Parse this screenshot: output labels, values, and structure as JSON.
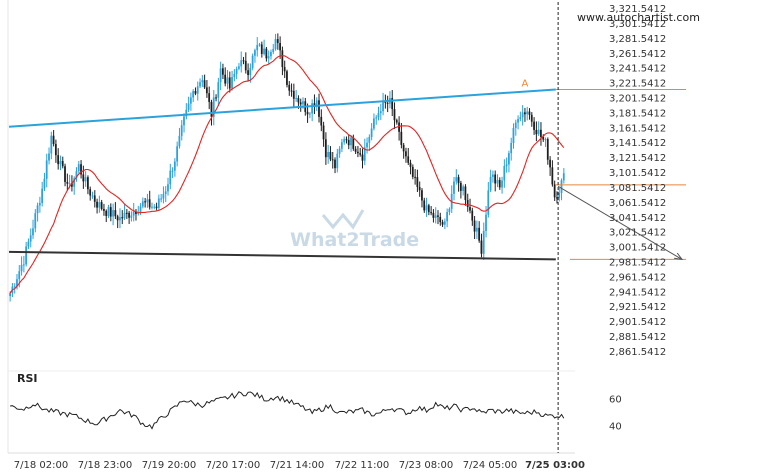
{
  "site_label": "www.autochartist.com",
  "watermark": "What2Trade",
  "colors": {
    "bull": "#2aa2dd",
    "bear": "#1e1e1e",
    "ma": "#e52421",
    "trend_upper": "#2aa2dd",
    "trend_lower": "#333333",
    "levels": "#e6883a",
    "rsi": "#222222"
  },
  "chart_data": {
    "type": "candlestick",
    "y_ticks": [
      "3,321.5412",
      "3,301.5412",
      "3,281.5412",
      "3,261.5412",
      "3,241.5412",
      "3,221.5412",
      "3,201.5412",
      "3,181.5412",
      "3,161.5412",
      "3,141.5412",
      "3,121.5412",
      "3,101.5412",
      "3,081.5412",
      "3,061.5412",
      "3,041.5412",
      "3,021.5412",
      "3,001.5412",
      "2,981.5412",
      "2,961.5412",
      "2,941.5412",
      "2,921.5412",
      "2,901.5412",
      "2,881.5412",
      "2,861.5412"
    ],
    "ylim": [
      2850,
      3325
    ],
    "x_ticks": [
      "7/18 02:00",
      "7/18 23:00",
      "7/19 20:00",
      "7/20 17:00",
      "7/21 14:00",
      "7/22 11:00",
      "7/23 08:00",
      "7/24 05:00",
      "7/25 03:00"
    ],
    "current_time_label": "7/25 03:00",
    "price_anchors": [
      [
        0,
        2940
      ],
      [
        6,
        2985
      ],
      [
        10,
        3030
      ],
      [
        14,
        3080
      ],
      [
        18,
        3150
      ],
      [
        22,
        3110
      ],
      [
        26,
        3080
      ],
      [
        30,
        3110
      ],
      [
        34,
        3080
      ],
      [
        38,
        3060
      ],
      [
        42,
        3050
      ],
      [
        48,
        3040
      ],
      [
        54,
        3050
      ],
      [
        58,
        3060
      ],
      [
        64,
        3055
      ],
      [
        68,
        3080
      ],
      [
        72,
        3120
      ],
      [
        76,
        3170
      ],
      [
        80,
        3210
      ],
      [
        84,
        3230
      ],
      [
        88,
        3180
      ],
      [
        92,
        3240
      ],
      [
        96,
        3215
      ],
      [
        100,
        3250
      ],
      [
        104,
        3240
      ],
      [
        108,
        3270
      ],
      [
        112,
        3260
      ],
      [
        116,
        3280
      ],
      [
        118,
        3260
      ],
      [
        122,
        3215
      ],
      [
        126,
        3200
      ],
      [
        130,
        3185
      ],
      [
        134,
        3200
      ],
      [
        138,
        3130
      ],
      [
        142,
        3110
      ],
      [
        146,
        3150
      ],
      [
        150,
        3140
      ],
      [
        154,
        3125
      ],
      [
        158,
        3160
      ],
      [
        162,
        3190
      ],
      [
        166,
        3195
      ],
      [
        170,
        3150
      ],
      [
        174,
        3110
      ],
      [
        178,
        3080
      ],
      [
        182,
        3050
      ],
      [
        186,
        3040
      ],
      [
        190,
        3030
      ],
      [
        194,
        3090
      ],
      [
        198,
        3080
      ],
      [
        202,
        3040
      ],
      [
        206,
        3000
      ],
      [
        210,
        3100
      ],
      [
        214,
        3080
      ],
      [
        218,
        3130
      ],
      [
        222,
        3180
      ],
      [
        226,
        3185
      ],
      [
        230,
        3160
      ],
      [
        234,
        3140
      ],
      [
        236,
        3110
      ],
      [
        238,
        3070
      ],
      [
        240,
        3080
      ],
      [
        242,
        3095
      ]
    ],
    "rsi": {
      "label": "RSI",
      "ticks": [
        60,
        40
      ],
      "ylim": [
        30,
        70
      ],
      "anchors": [
        [
          0,
          55
        ],
        [
          6,
          53
        ],
        [
          10,
          57
        ],
        [
          16,
          52
        ],
        [
          22,
          50
        ],
        [
          28,
          48
        ],
        [
          34,
          44
        ],
        [
          38,
          42
        ],
        [
          42,
          46
        ],
        [
          48,
          52
        ],
        [
          54,
          48
        ],
        [
          58,
          42
        ],
        [
          62,
          40
        ],
        [
          66,
          46
        ],
        [
          72,
          54
        ],
        [
          76,
          60
        ],
        [
          80,
          57
        ],
        [
          84,
          56
        ],
        [
          90,
          59
        ],
        [
          96,
          62
        ],
        [
          100,
          64
        ],
        [
          104,
          65
        ],
        [
          108,
          63
        ],
        [
          112,
          60
        ],
        [
          116,
          62
        ],
        [
          120,
          60
        ],
        [
          124,
          57
        ],
        [
          128,
          54
        ],
        [
          132,
          50
        ],
        [
          136,
          53
        ],
        [
          140,
          55
        ],
        [
          144,
          50
        ],
        [
          150,
          51
        ],
        [
          154,
          52
        ],
        [
          158,
          49
        ],
        [
          162,
          50
        ],
        [
          166,
          54
        ],
        [
          170,
          52
        ],
        [
          174,
          50
        ],
        [
          178,
          54
        ],
        [
          182,
          52
        ],
        [
          186,
          57
        ],
        [
          190,
          53
        ],
        [
          194,
          55
        ],
        [
          198,
          52
        ],
        [
          202,
          54
        ],
        [
          206,
          50
        ],
        [
          210,
          52
        ],
        [
          214,
          51
        ],
        [
          218,
          52
        ],
        [
          222,
          50
        ],
        [
          226,
          50
        ],
        [
          230,
          51
        ],
        [
          234,
          48
        ],
        [
          238,
          48
        ],
        [
          240,
          48
        ],
        [
          242,
          47
        ]
      ]
    },
    "trendlines": [
      {
        "name": "resistance",
        "x1": 0,
        "y1": 3163,
        "x2": 239,
        "y2": 3213
      },
      {
        "name": "support",
        "x1": 0,
        "y1": 2995,
        "x2": 239,
        "y2": 2985
      }
    ],
    "levels": [
      {
        "name": "upper-level",
        "value": 3213
      },
      {
        "name": "entry-level",
        "value": 3085
      },
      {
        "name": "target-level",
        "value": 2985
      }
    ],
    "marker_label": "A",
    "arrow": {
      "from_bar": 240,
      "from_value": 3083,
      "to_bar": 295,
      "to_value": 2985
    }
  }
}
